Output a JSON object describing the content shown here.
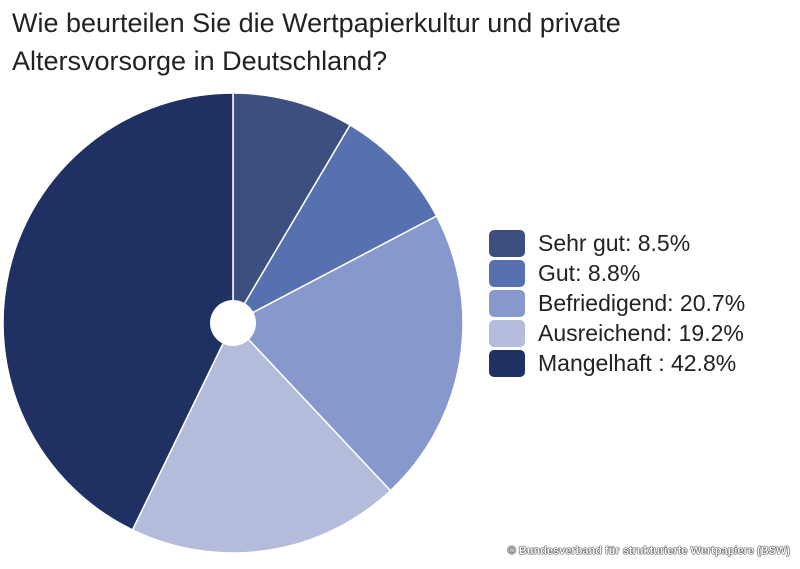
{
  "chart_data": {
    "type": "pie",
    "title": "Wie beurteilen Sie die Wertpapierkultur und private Altersvorsorge in Deutschland?",
    "legend_position": "right",
    "slices": [
      {
        "label": "Sehr gut: 8.5%",
        "name": "Sehr gut",
        "value": 8.5,
        "color": "#3d4f7e"
      },
      {
        "label": "Gut: 8.8%",
        "name": "Gut",
        "value": 8.8,
        "color": "#5670b0"
      },
      {
        "label": "Befriedigend: 20.7%",
        "name": "Befriedigend",
        "value": 20.7,
        "color": "#8698cc"
      },
      {
        "label": "Ausreichend: 19.2%",
        "name": "Ausreichend",
        "value": 19.2,
        "color": "#b5bcdb"
      },
      {
        "label": "Mangelhaft : 42.8%",
        "name": "Mangelhaft",
        "value": 42.8,
        "color": "#1f3063"
      }
    ]
  },
  "credit": "© Bundesverband für strukturierte Wertpapiere (BSW)"
}
